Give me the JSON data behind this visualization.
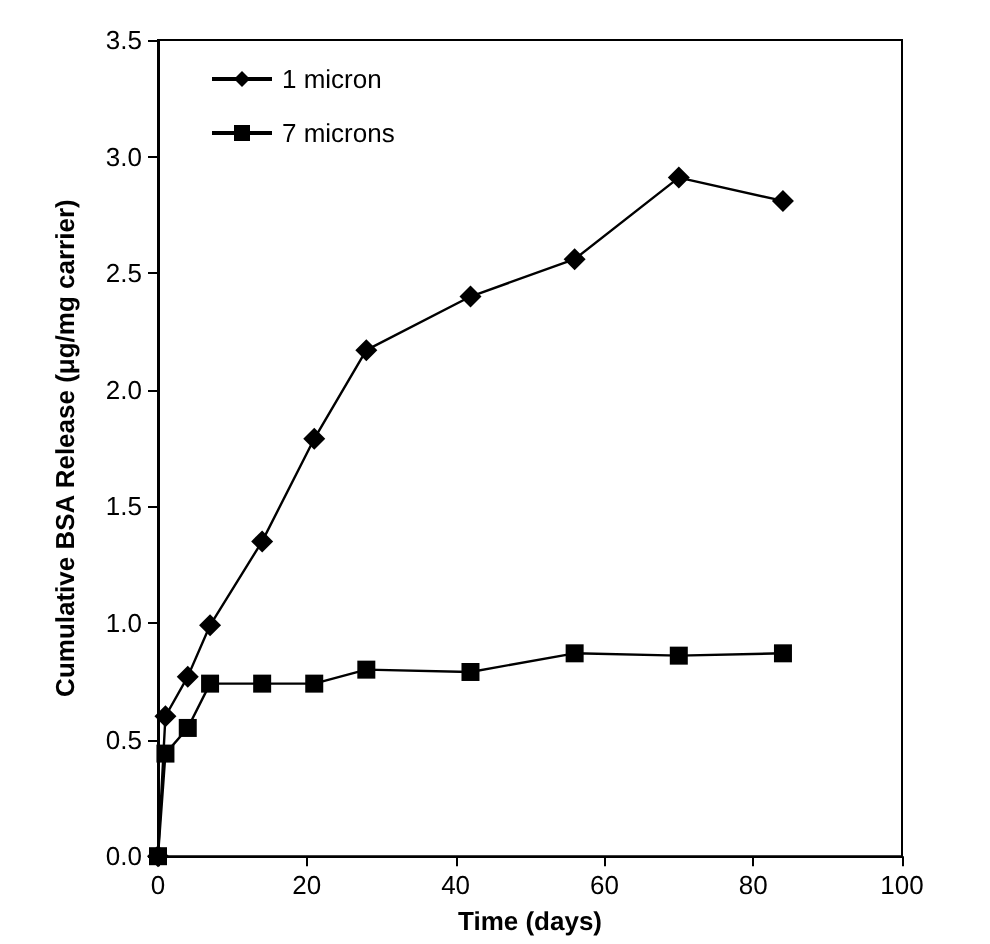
{
  "chart_data": {
    "type": "line",
    "xlabel": "Time (days)",
    "ylabel": "Cumulative BSA Release (μg/mg carrier)",
    "x": [
      0,
      1,
      4,
      7,
      14,
      21,
      28,
      42,
      56,
      70,
      84
    ],
    "series": [
      {
        "name": "1 micron",
        "color": "#000000",
        "marker": "diamond",
        "values": [
          0,
          0.6,
          0.77,
          0.99,
          1.35,
          1.79,
          2.17,
          2.4,
          2.56,
          2.91,
          2.81
        ]
      },
      {
        "name": "7 microns",
        "color": "#000000",
        "marker": "square",
        "values": [
          0,
          0.44,
          0.55,
          0.74,
          0.74,
          0.74,
          0.8,
          0.79,
          0.87,
          0.86,
          0.87
        ]
      }
    ],
    "xlim": [
      0,
      100
    ],
    "xticks": [
      0,
      20,
      40,
      60,
      80,
      100
    ],
    "ylim": [
      0,
      3.5
    ],
    "yticks": [
      {
        "value": 0,
        "label": "0.0"
      },
      {
        "value": 0.5,
        "label": "0.5"
      },
      {
        "value": 1,
        "label": "1.0"
      },
      {
        "value": 1.5,
        "label": "1.5"
      },
      {
        "value": 2,
        "label": "2.0"
      },
      {
        "value": 2.5,
        "label": "2.5"
      },
      {
        "value": 3,
        "label": "3.0"
      },
      {
        "value": 3.5,
        "label": "3.5"
      }
    ],
    "grid": false,
    "legend": "top left",
    "line_style": "solid"
  }
}
